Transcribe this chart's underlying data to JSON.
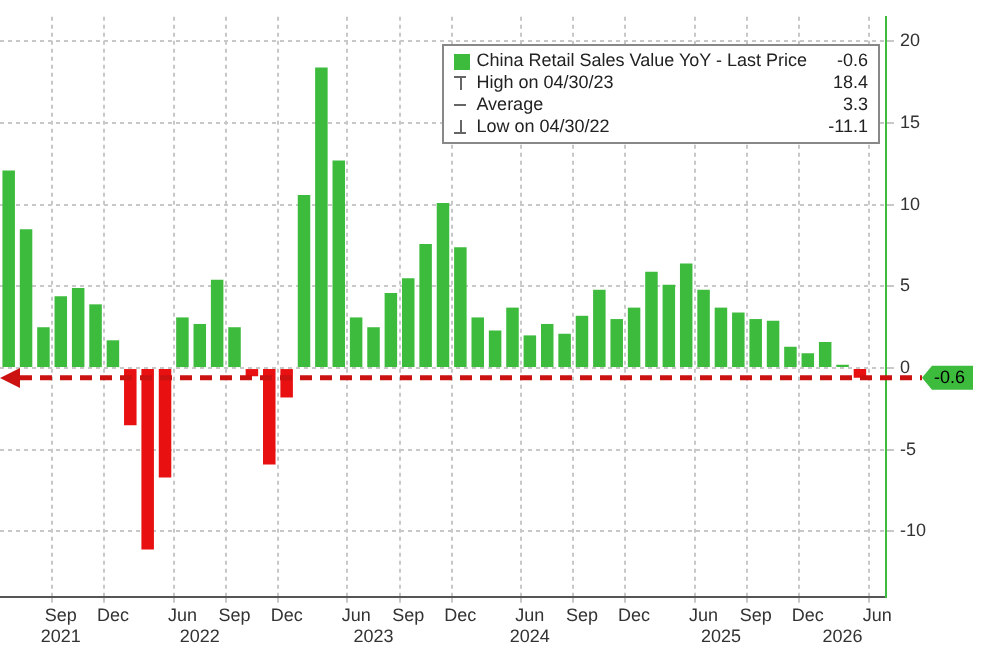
{
  "chart_data": {
    "type": "bar",
    "categories": [
      null,
      null,
      null,
      "Sep\n2021",
      null,
      null,
      "Dec",
      null,
      null,
      null,
      "Jun",
      "\n2022",
      null,
      "Sep",
      null,
      null,
      "Dec",
      null,
      null,
      null,
      "Jun",
      "\n2023",
      null,
      "Sep",
      null,
      null,
      "Dec",
      null,
      null,
      null,
      "Jun\n2024",
      null,
      null,
      "Sep",
      null,
      null,
      "Dec",
      null,
      null,
      null,
      "Jun",
      "\n2025",
      null,
      "Sep",
      null,
      null,
      "Dec",
      null,
      "\n2026",
      null,
      "Jun"
    ],
    "series": [
      {
        "name": "China Retail Sales Value YoY - Last Price",
        "color": "#3dbb3d",
        "values": [
          12.1,
          8.5,
          2.5,
          4.4,
          4.9,
          3.9,
          1.7,
          -3.5,
          -11.1,
          -6.7,
          3.1,
          2.7,
          5.4,
          2.5,
          -0.5,
          -5.9,
          -1.8,
          10.6,
          18.4,
          12.7,
          3.1,
          2.5,
          4.6,
          5.5,
          7.6,
          10.1,
          7.4,
          3.1,
          2.3,
          3.7,
          2.0,
          2.7,
          2.1,
          3.2,
          4.8,
          3.0,
          3.7,
          5.9,
          5.1,
          6.4,
          4.8,
          3.7,
          3.4,
          3.0,
          2.9,
          1.3,
          0.9,
          1.6,
          0.2,
          -0.6,
          null
        ],
        "colors": [
          "#3dbb3d",
          "#3dbb3d",
          "#3dbb3d",
          "#3dbb3d",
          "#3dbb3d",
          "#3dbb3d",
          "#3dbb3d",
          "#e81010",
          "#e81010",
          "#e81010",
          "#3dbb3d",
          "#3dbb3d",
          "#3dbb3d",
          "#3dbb3d",
          "#e81010",
          "#e81010",
          "#e81010",
          "#3dbb3d",
          "#3dbb3d",
          "#3dbb3d",
          "#3dbb3d",
          "#3dbb3d",
          "#3dbb3d",
          "#3dbb3d",
          "#3dbb3d",
          "#3dbb3d",
          "#3dbb3d",
          "#3dbb3d",
          "#3dbb3d",
          "#3dbb3d",
          "#3dbb3d",
          "#3dbb3d",
          "#3dbb3d",
          "#3dbb3d",
          "#3dbb3d",
          "#3dbb3d",
          "#3dbb3d",
          "#3dbb3d",
          "#3dbb3d",
          "#3dbb3d",
          "#3dbb3d",
          "#3dbb3d",
          "#3dbb3d",
          "#3dbb3d",
          "#3dbb3d",
          "#3dbb3d",
          "#3dbb3d",
          "#3dbb3d",
          "#3dbb3d",
          "#e81010",
          "#e81010"
        ]
      }
    ],
    "ylim": [
      -14,
      21.5
    ],
    "yticks": [
      -10,
      -5,
      0,
      5,
      10,
      15,
      20
    ],
    "grid": true,
    "legend": "top right",
    "ref_lines": [
      {
        "axis": "y",
        "value": -0.6,
        "label": "-0.6",
        "color": "#cc1111",
        "line_style": "dashed"
      }
    ],
    "annotations": [
      "-0.6",
      "High on 04/30/23",
      "18.4",
      "Average",
      "3.3",
      "Low on 04/30/22",
      "-11.1"
    ]
  }
}
